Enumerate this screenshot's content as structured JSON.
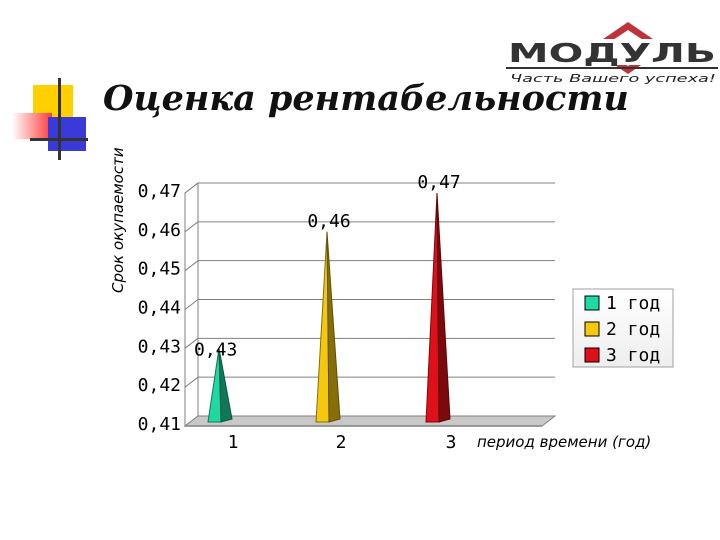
{
  "slide": {
    "title": "Оценка рентабельности",
    "logo": {
      "name": "МОДУЛЬ",
      "tagline": "Часть Вашего успеха!",
      "color": "#c0323a"
    }
  },
  "chart_data": {
    "type": "bar",
    "bar_shape": "cone",
    "categories": [
      "1",
      "2",
      "3"
    ],
    "values": [
      0.43,
      0.46,
      0.47
    ],
    "data_labels": [
      "0,43",
      "0,46",
      "0,47"
    ],
    "colors": [
      "#1fd9a0",
      "#f4c80e",
      "#e0101a"
    ],
    "legend": [
      "1 год",
      "2 год",
      "3 год"
    ],
    "legend_position": "right",
    "xlabel": "период времени (год)",
    "ylabel": "Срок окупаемости",
    "ylim": [
      0.41,
      0.47
    ],
    "yticks": [
      "0,41",
      "0,42",
      "0,43",
      "0,44",
      "0,45",
      "0,46",
      "0,47"
    ],
    "grid": true
  }
}
